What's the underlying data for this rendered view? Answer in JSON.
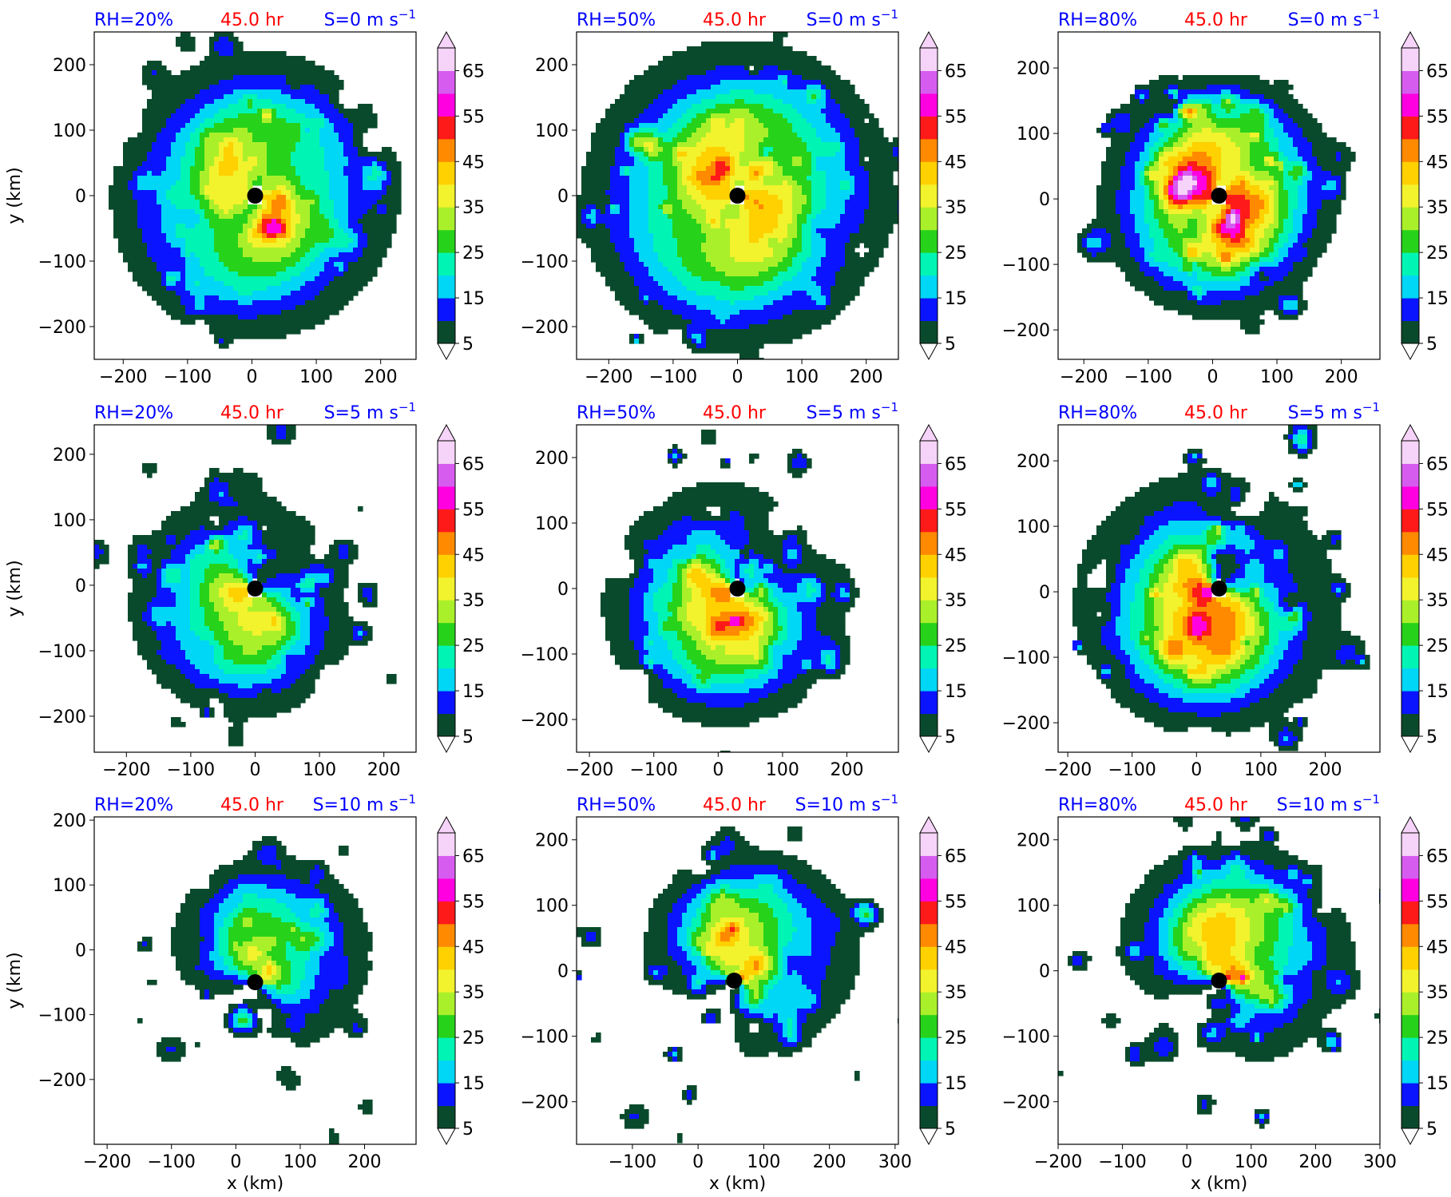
{
  "figure": {
    "rows": 3,
    "cols": 3,
    "xlabel": "x (km)",
    "ylabel": "y (km)",
    "time_label": "45.0 hr",
    "label_colors": {
      "rh": "#0000ff",
      "time": "#ff0000",
      "shear": "#0000ff"
    }
  },
  "colorbar": {
    "levels": [
      5,
      10,
      15,
      20,
      25,
      30,
      35,
      40,
      45,
      50,
      55,
      60,
      65,
      70
    ],
    "tick_labels": [
      "5",
      "15",
      "25",
      "35",
      "45",
      "55",
      "65"
    ],
    "colors": [
      "#0a4a2c",
      "#0a14ff",
      "#00d6f5",
      "#00f5b4",
      "#27d21a",
      "#aaf02a",
      "#f2f22d",
      "#ffd100",
      "#ff8a00",
      "#ff1a1a",
      "#ff00e0",
      "#d65cf0",
      "#f6d3f8"
    ],
    "extend": "both"
  },
  "chart_data": [
    {
      "type": "heatmap",
      "rh_label": "RH=20%",
      "time_label": "45.0 hr",
      "shear_label": "S=0 m s",
      "shear_exp": "−1",
      "xlim": [
        -245,
        255
      ],
      "ylim": [
        -250,
        250
      ],
      "xticks": [
        -200,
        -100,
        0,
        100,
        200
      ],
      "xtick_labels": [
        "−200",
        "−100",
        "0",
        "100",
        "200"
      ],
      "yticks": [
        -200,
        -100,
        0,
        100,
        200
      ],
      "ytick_labels": [
        "−200",
        "−100",
        "0",
        "100",
        "200"
      ],
      "center": [
        5,
        0
      ],
      "pattern": "ring",
      "intensity": 0.75,
      "radius": 235,
      "seed": 11
    },
    {
      "type": "heatmap",
      "rh_label": "RH=50%",
      "time_label": "45.0 hr",
      "shear_label": "S=0 m s",
      "shear_exp": "−1",
      "xlim": [
        -250,
        250
      ],
      "ylim": [
        -250,
        250
      ],
      "xticks": [
        -200,
        -100,
        0,
        100,
        200
      ],
      "xtick_labels": [
        "−200",
        "−100",
        "0",
        "100",
        "200"
      ],
      "yticks": [
        -200,
        -100,
        0,
        100,
        200
      ],
      "ytick_labels": [
        "−200",
        "−100",
        "0",
        "100",
        "200"
      ],
      "center": [
        0,
        0
      ],
      "pattern": "ring",
      "intensity": 0.85,
      "radius": 250,
      "seed": 23
    },
    {
      "type": "heatmap",
      "rh_label": "RH=80%",
      "time_label": "45.0 hr",
      "shear_label": "S=0 m s",
      "shear_exp": "−1",
      "xlim": [
        -240,
        260
      ],
      "ylim": [
        -245,
        255
      ],
      "xticks": [
        -200,
        -100,
        0,
        100,
        200
      ],
      "xtick_labels": [
        "−200",
        "−100",
        "0",
        "100",
        "200"
      ],
      "yticks": [
        -200,
        -100,
        0,
        100,
        200
      ],
      "ytick_labels": [
        "−200",
        "−100",
        "0",
        "100",
        "200"
      ],
      "center": [
        10,
        5
      ],
      "pattern": "ring",
      "intensity": 1.0,
      "radius": 180,
      "seed": 37
    },
    {
      "type": "heatmap",
      "rh_label": "RH=20%",
      "time_label": "45.0 hr",
      "shear_label": "S=5 m s",
      "shear_exp": "−1",
      "xlim": [
        -250,
        250
      ],
      "ylim": [
        -255,
        245
      ],
      "xticks": [
        -200,
        -100,
        0,
        100,
        200
      ],
      "xtick_labels": [
        "−200",
        "−100",
        "0",
        "100",
        "200"
      ],
      "yticks": [
        -200,
        -100,
        0,
        100,
        200
      ],
      "ytick_labels": [
        "−200",
        "−100",
        "0",
        "100",
        "200"
      ],
      "center": [
        0,
        -5
      ],
      "pattern": "sheared",
      "intensity": 0.75,
      "radius": 230,
      "seed": 41
    },
    {
      "type": "heatmap",
      "rh_label": "RH=50%",
      "time_label": "45.0 hr",
      "shear_label": "S=5 m s",
      "shear_exp": "−1",
      "xlim": [
        -220,
        280
      ],
      "ylim": [
        -250,
        250
      ],
      "xticks": [
        -200,
        -100,
        0,
        100,
        200
      ],
      "xtick_labels": [
        "−200",
        "−100",
        "0",
        "100",
        "200"
      ],
      "yticks": [
        -200,
        -100,
        0,
        100,
        200
      ],
      "ytick_labels": [
        "−200",
        "−100",
        "0",
        "100",
        "200"
      ],
      "center": [
        30,
        0
      ],
      "pattern": "sheared",
      "intensity": 0.85,
      "radius": 240,
      "seed": 53
    },
    {
      "type": "heatmap",
      "rh_label": "RH=80%",
      "time_label": "45.0 hr",
      "shear_label": "S=5 m s",
      "shear_exp": "−1",
      "xlim": [
        -215,
        285
      ],
      "ylim": [
        -245,
        255
      ],
      "xticks": [
        -200,
        -100,
        0,
        100,
        200
      ],
      "xtick_labels": [
        "−200",
        "−100",
        "0",
        "100",
        "200"
      ],
      "yticks": [
        -200,
        -100,
        0,
        100,
        200
      ],
      "ytick_labels": [
        "−200",
        "−100",
        "0",
        "100",
        "200"
      ],
      "center": [
        35,
        5
      ],
      "pattern": "sheared",
      "intensity": 1.0,
      "radius": 250,
      "seed": 67
    },
    {
      "type": "heatmap",
      "rh_label": "RH=20%",
      "time_label": "45.0 hr",
      "shear_label": "S=10 m s",
      "shear_exp": "−1",
      "xlim": [
        -220,
        280
      ],
      "ylim": [
        -300,
        205
      ],
      "xticks": [
        -200,
        -100,
        0,
        100,
        200
      ],
      "xtick_labels": [
        "−200",
        "−100",
        "0",
        "100",
        "200"
      ],
      "yticks": [
        -200,
        -100,
        0,
        100,
        200
      ],
      "ytick_labels": [
        "−200",
        "−100",
        "0",
        "100",
        "200"
      ],
      "center": [
        30,
        -50
      ],
      "pattern": "strong",
      "intensity": 0.7,
      "radius": 250,
      "seed": 79
    },
    {
      "type": "heatmap",
      "rh_label": "RH=50%",
      "time_label": "45.0 hr",
      "shear_label": "S=10 m s",
      "shear_exp": "−1",
      "xlim": [
        -185,
        305
      ],
      "ylim": [
        -265,
        235
      ],
      "xticks": [
        -100,
        0,
        100,
        200,
        300
      ],
      "xtick_labels": [
        "−100",
        "0",
        "100",
        "200",
        "300"
      ],
      "yticks": [
        -200,
        -100,
        0,
        100,
        200
      ],
      "ytick_labels": [
        "−200",
        "−100",
        "0",
        "100",
        "200"
      ],
      "center": [
        55,
        -15
      ],
      "pattern": "strong",
      "intensity": 0.85,
      "radius": 250,
      "seed": 97
    },
    {
      "type": "heatmap",
      "rh_label": "RH=80%",
      "time_label": "45.0 hr",
      "shear_label": "S=10 m s",
      "shear_exp": "−1",
      "xlim": [
        -200,
        300
      ],
      "ylim": [
        -265,
        235
      ],
      "xticks": [
        -200,
        -100,
        0,
        100,
        200,
        300
      ],
      "xtick_labels": [
        "−200",
        "−100",
        "0",
        "100",
        "200",
        "300"
      ],
      "yticks": [
        -200,
        -100,
        0,
        100,
        200
      ],
      "ytick_labels": [
        "−200",
        "−100",
        "0",
        "100",
        "200"
      ],
      "center": [
        50,
        -15
      ],
      "pattern": "strong",
      "intensity": 1.0,
      "radius": 260,
      "seed": 113
    }
  ]
}
